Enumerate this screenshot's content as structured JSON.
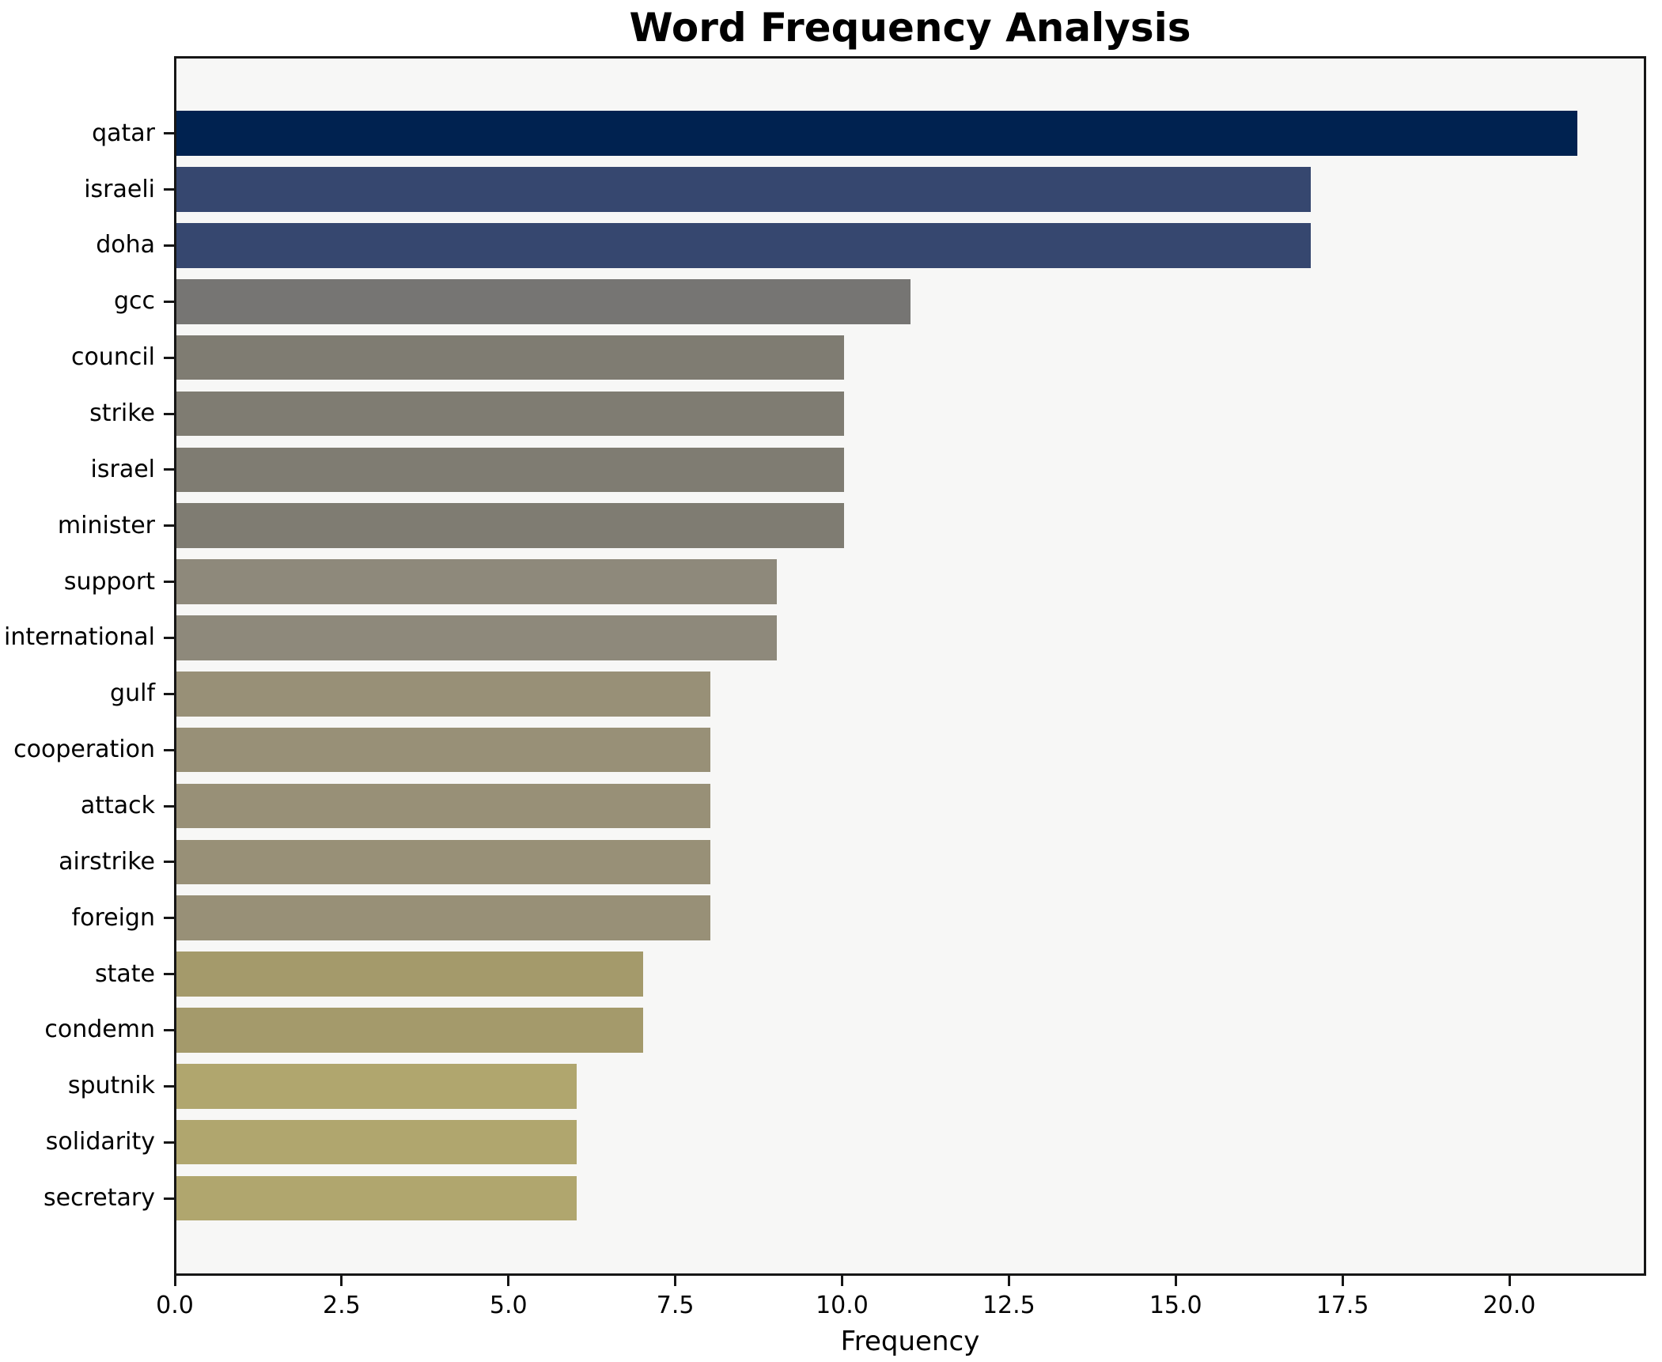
{
  "chart_data": {
    "type": "bar",
    "orientation": "horizontal",
    "title": "Word Frequency Analysis",
    "xlabel": "Frequency",
    "ylabel": "",
    "xlim": [
      0,
      22.05
    ],
    "x_ticks": [
      0,
      2.5,
      5,
      7.5,
      10,
      12.5,
      15,
      17.5,
      20
    ],
    "x_tick_labels": [
      "0.0",
      "2.5",
      "5.0",
      "7.5",
      "10.0",
      "12.5",
      "15.0",
      "17.5",
      "20.0"
    ],
    "grid": false,
    "legend": null,
    "colormap": "cividis",
    "categories": [
      "qatar",
      "israeli",
      "doha",
      "gcc",
      "council",
      "strike",
      "israel",
      "minister",
      "support",
      "international",
      "gulf",
      "cooperation",
      "attack",
      "airstrike",
      "foreign",
      "state",
      "condemn",
      "sputnik",
      "solidarity",
      "secretary"
    ],
    "values": [
      21,
      17,
      17,
      11,
      10,
      10,
      10,
      10,
      9,
      9,
      8,
      8,
      8,
      8,
      8,
      7,
      7,
      6,
      6,
      6
    ],
    "bar_colors": [
      "#002250",
      "#36476f",
      "#36476f",
      "#767573",
      "#7f7c72",
      "#7f7c72",
      "#7f7c72",
      "#7f7c72",
      "#8e897b",
      "#8e897b",
      "#989077",
      "#989077",
      "#989077",
      "#989077",
      "#989077",
      "#a49a6b",
      "#a49a6b",
      "#b0a66e",
      "#b0a66e",
      "#b0a66e"
    ]
  },
  "colors": {
    "figure_bg": "#ffffff",
    "plot_bg": "#f7f7f6",
    "spine": "#161616",
    "text": "#000000"
  }
}
